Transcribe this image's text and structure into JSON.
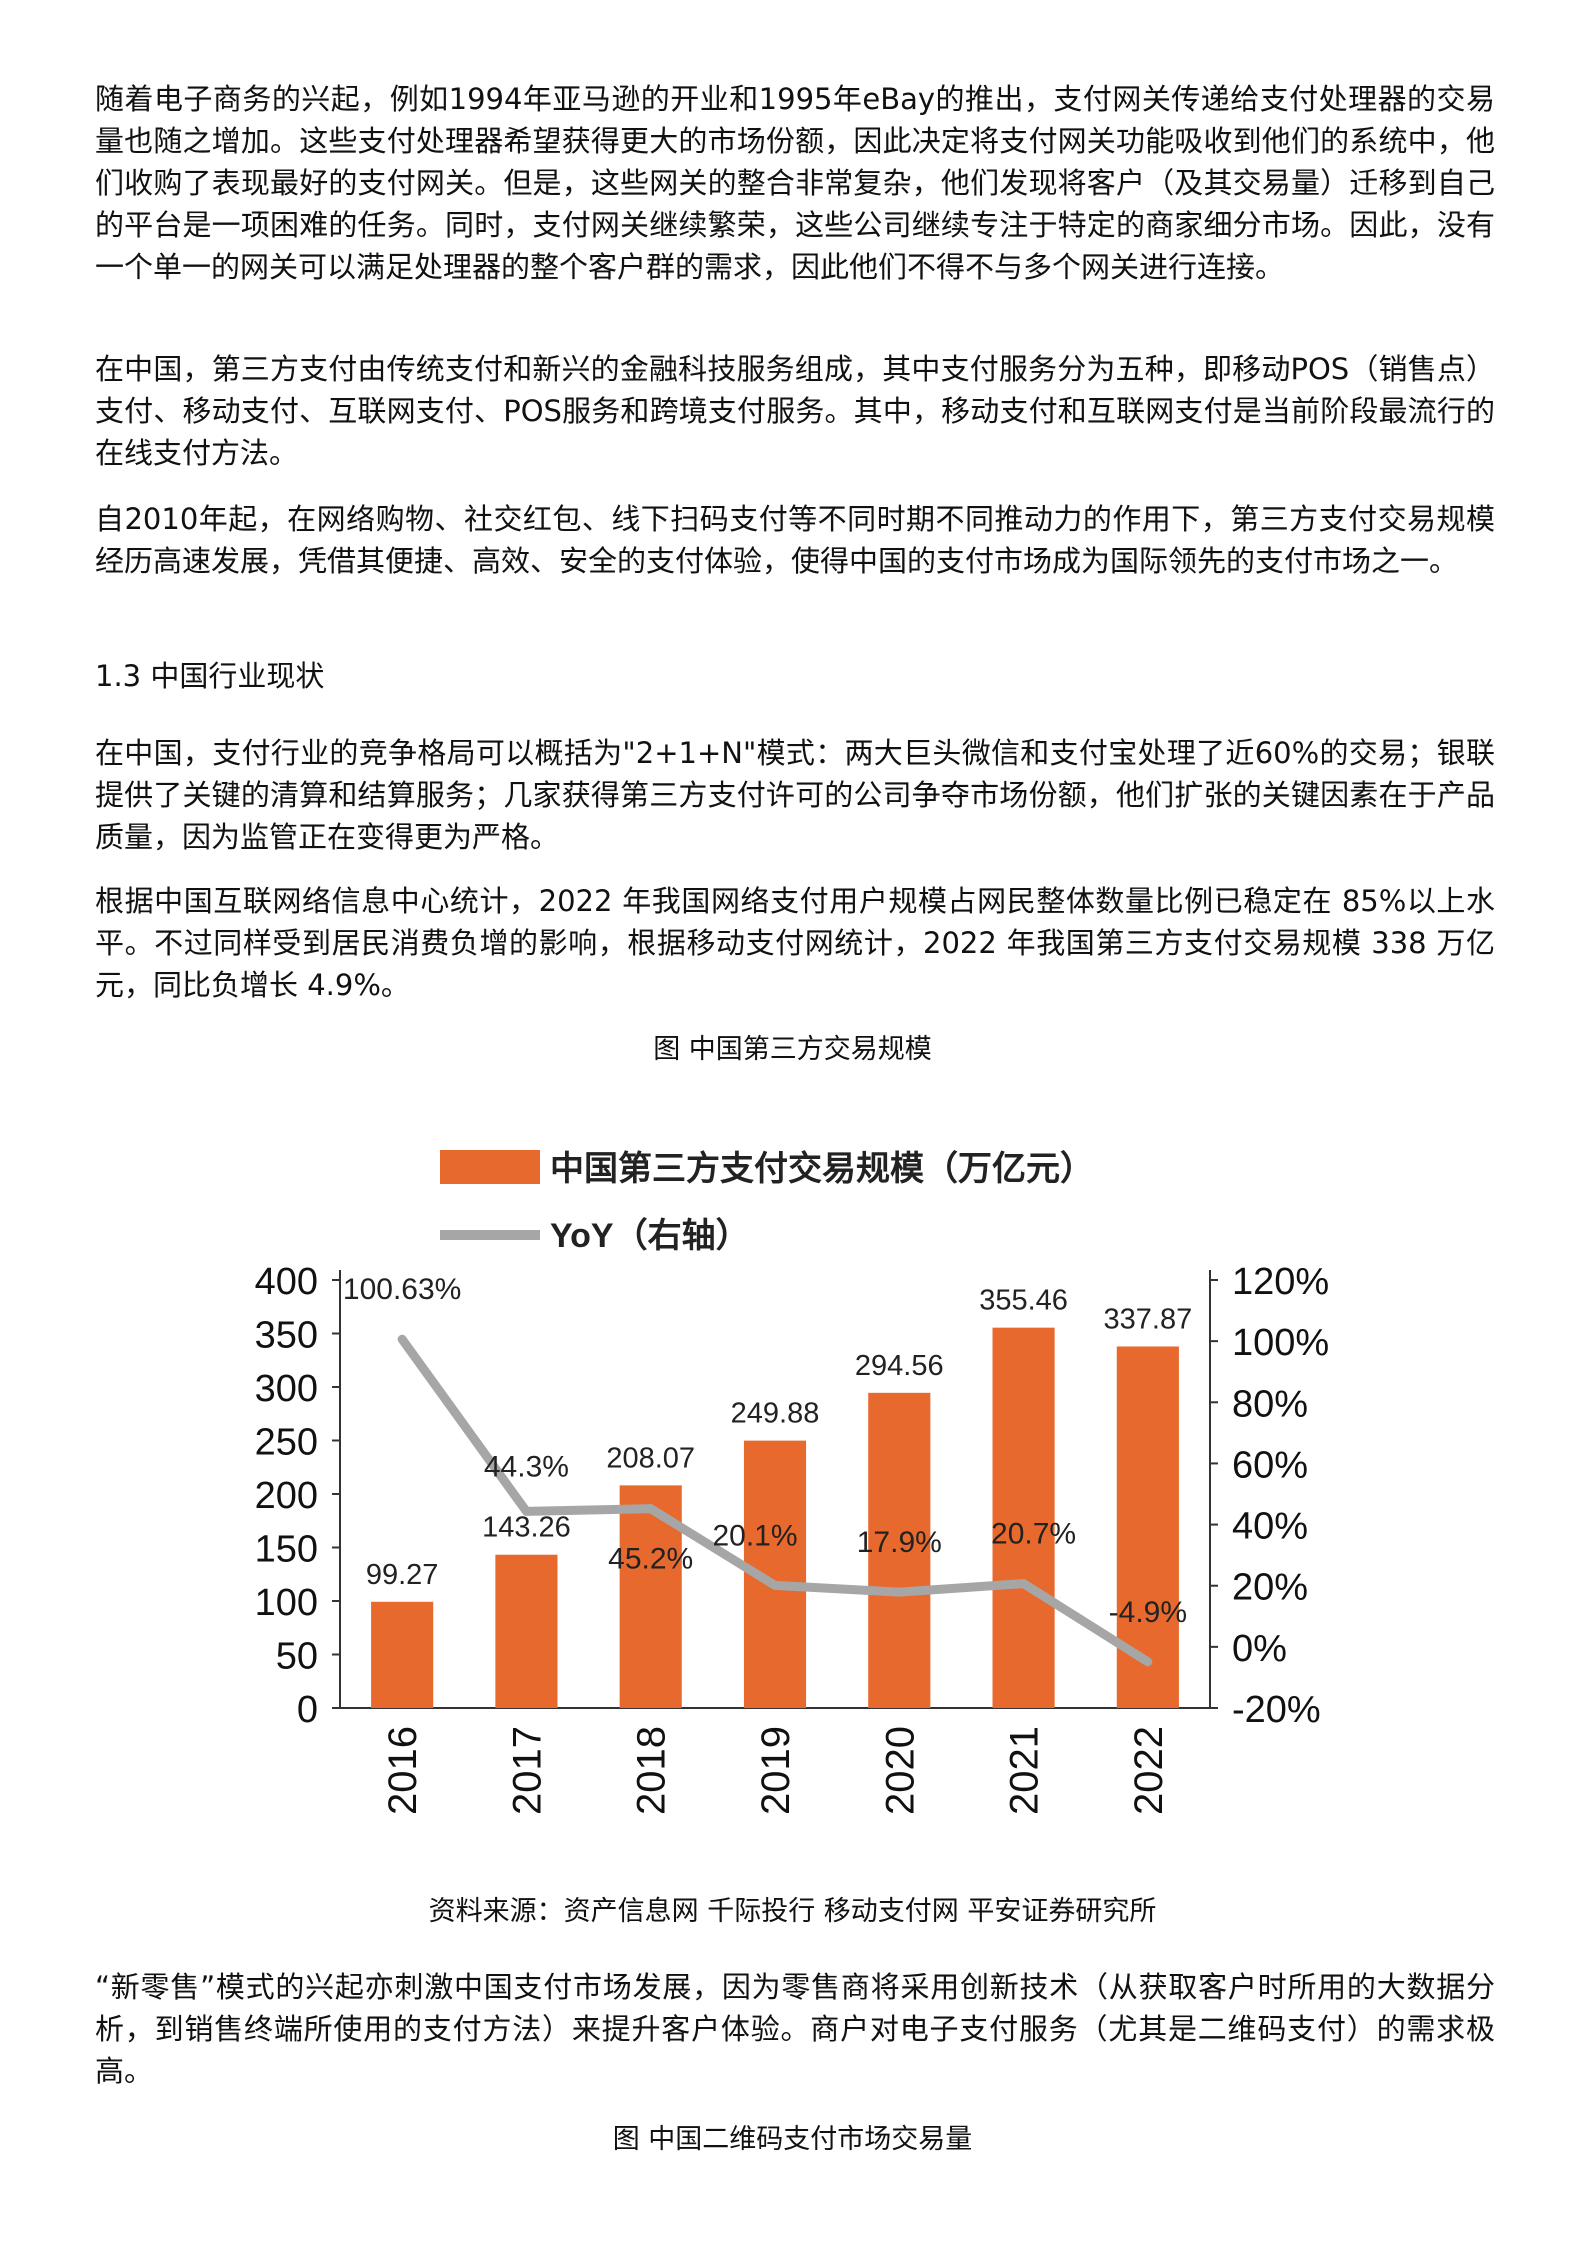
{
  "paragraphs": {
    "p1": "随着电子商务的兴起，例如1994年亚马逊的开业和1995年eBay的推出，支付网关传递给支付处理器的交易量也随之增加。这些支付处理器希望获得更大的市场份额，因此决定将支付网关功能吸收到他们的系统中，他们收购了表现最好的支付网关。但是，这些网关的整合非常复杂，他们发现将客户（及其交易量）迁移到自己的平台是一项困难的任务。同时，支付网关继续繁荣，这些公司继续专注于特定的商家细分市场。因此，没有一个单一的网关可以满足处理器的整个客户群的需求，因此他们不得不与多个网关进行连接。",
    "p2": "在中国，第三方支付由传统支付和新兴的金融科技服务组成，其中支付服务分为五种，即移动POS（销售点）支付、移动支付、互联网支付、POS服务和跨境支付服务。其中，移动支付和互联网支付是当前阶段最流行的在线支付方法。",
    "p3": "自2010年起，在网络购物、社交红包、线下扫码支付等不同时期不同推动力的作用下，第三方支付交易规模经历高速发展，凭借其便捷、高效、安全的支付体验，使得中国的支付市场成为国际领先的支付市场之一。",
    "heading": "1.3 中国行业现状",
    "p4": "在中国，支付行业的竞争格局可以概括为\"2+1+N\"模式：两大巨头微信和支付宝处理了近60%的交易；银联提供了关键的清算和结算服务；几家获得第三方支付许可的公司争夺市场份额，他们扩张的关键因素在于产品质量，因为监管正在变得更为严格。",
    "p5": "根据中国互联网络信息中心统计，2022 年我国网络支付用户规模占网民整体数量比例已稳定在 85%以上水平。不过同样受到居民消费负增的影响，根据移动支付网统计，2022 年我国第三方支付交易规模 338 万亿元，同比负增长 4.9%。",
    "p6": "“新零售”模式的兴起亦刺激中国支付市场发展，因为零售商将采用创新技术（从获取客户时所用的大数据分析，到销售终端所使用的支付方法）来提升客户体验。商户对电子支付服务（尤其是二维码支付）的需求极高。"
  },
  "figure1": {
    "caption": "图 中国第三方交易规模",
    "source": "资料来源：资产信息网 千际投行 移动支付网 平安证券研究所"
  },
  "figure2": {
    "caption": "图 中国二维码支付市场交易量"
  },
  "chart_data": {
    "type": "bar",
    "categories": [
      "2016",
      "2017",
      "2018",
      "2019",
      "2020",
      "2021",
      "2022"
    ],
    "series": [
      {
        "name": "中国第三方支付交易规模（万亿元）",
        "type": "bar",
        "axis": "left",
        "color": "#E8692D",
        "values": [
          99.27,
          143.26,
          208.07,
          249.88,
          294.56,
          355.46,
          337.87
        ],
        "labels": [
          "99.27",
          "143.26",
          "208.07",
          "249.88",
          "294.56",
          "355.46",
          "337.87"
        ]
      },
      {
        "name": "YoY（右轴）",
        "type": "line",
        "axis": "right",
        "color": "#A6A6A6",
        "values": [
          100.63,
          44.3,
          45.2,
          20.1,
          17.9,
          20.7,
          -4.9
        ],
        "labels": [
          "100.63%",
          "44.3%",
          "45.2%",
          "20.1%",
          "17.9%",
          "20.7%",
          "-4.9%"
        ]
      }
    ],
    "ylim_left": [
      0,
      400
    ],
    "yticks_left": [
      "0",
      "50",
      "100",
      "150",
      "200",
      "250",
      "300",
      "350",
      "400"
    ],
    "ylim_right": [
      -20,
      120
    ],
    "yticks_right": [
      "-20%",
      "0%",
      "20%",
      "40%",
      "60%",
      "80%",
      "100%",
      "120%"
    ],
    "legend_position": "top",
    "grid": false
  }
}
